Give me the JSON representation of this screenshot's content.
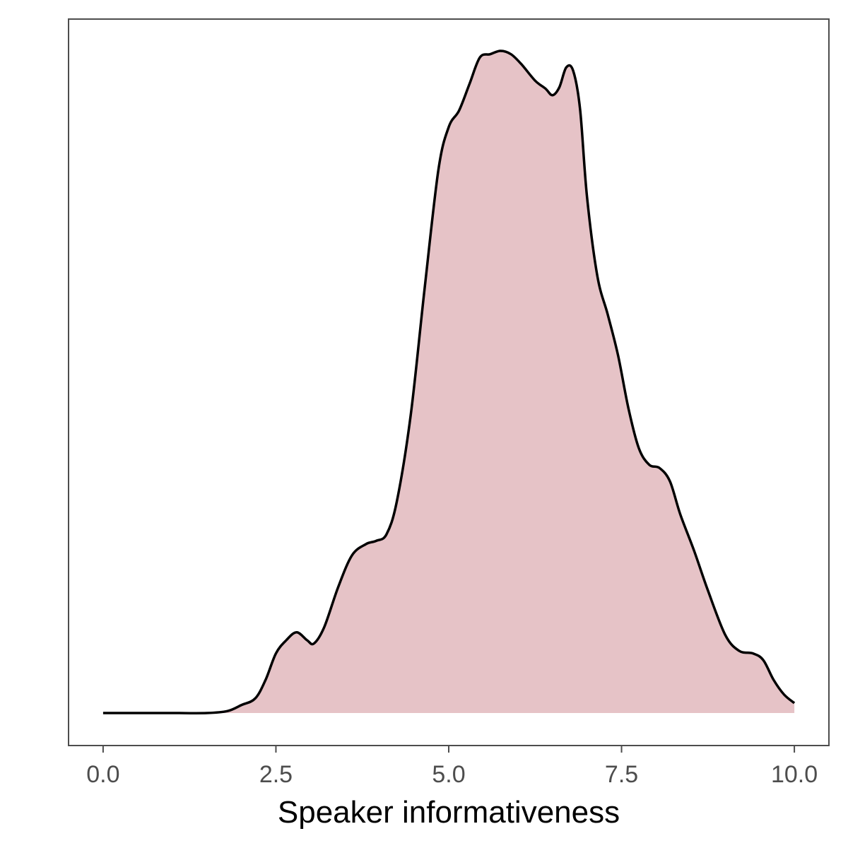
{
  "chart_data": {
    "type": "area",
    "title": "",
    "xlabel": "Speaker informativeness",
    "ylabel": "",
    "xlim": [
      -0.5,
      10.5
    ],
    "ylim": [
      0,
      1
    ],
    "x_ticks": [
      {
        "value": 0,
        "label": "0.0"
      },
      {
        "value": 2.5,
        "label": "2.5"
      },
      {
        "value": 5,
        "label": "5.0"
      },
      {
        "value": 7.5,
        "label": "7.5"
      },
      {
        "value": 10,
        "label": "10.0"
      }
    ],
    "y_ticks_shown": false,
    "grid": false,
    "series": [
      {
        "fill_color": "#e6c3c7",
        "line_color": "#000000",
        "x": [
          0,
          0.5,
          1.0,
          1.5,
          1.8,
          2.0,
          2.2,
          2.35,
          2.5,
          2.65,
          2.8,
          2.95,
          3.05,
          3.2,
          3.4,
          3.6,
          3.8,
          3.95,
          4.1,
          4.25,
          4.45,
          4.65,
          4.85,
          5.0,
          5.15,
          5.3,
          5.45,
          5.6,
          5.75,
          5.9,
          6.05,
          6.25,
          6.4,
          6.5,
          6.6,
          6.7,
          6.8,
          6.9,
          7.0,
          7.15,
          7.3,
          7.45,
          7.6,
          7.75,
          7.9,
          8.05,
          8.2,
          8.35,
          8.55,
          8.75,
          9.0,
          9.2,
          9.4,
          9.55,
          9.7,
          9.85,
          10.0
        ],
        "y": [
          0,
          0,
          0,
          0,
          0.003,
          0.012,
          0.022,
          0.05,
          0.09,
          0.11,
          0.122,
          0.11,
          0.105,
          0.13,
          0.19,
          0.238,
          0.255,
          0.26,
          0.27,
          0.32,
          0.45,
          0.64,
          0.82,
          0.885,
          0.91,
          0.95,
          0.99,
          0.995,
          1.0,
          0.995,
          0.98,
          0.955,
          0.943,
          0.933,
          0.945,
          0.975,
          0.97,
          0.912,
          0.78,
          0.66,
          0.602,
          0.54,
          0.46,
          0.4,
          0.375,
          0.37,
          0.35,
          0.3,
          0.245,
          0.185,
          0.118,
          0.094,
          0.09,
          0.08,
          0.05,
          0.028,
          0.015
        ]
      }
    ]
  }
}
